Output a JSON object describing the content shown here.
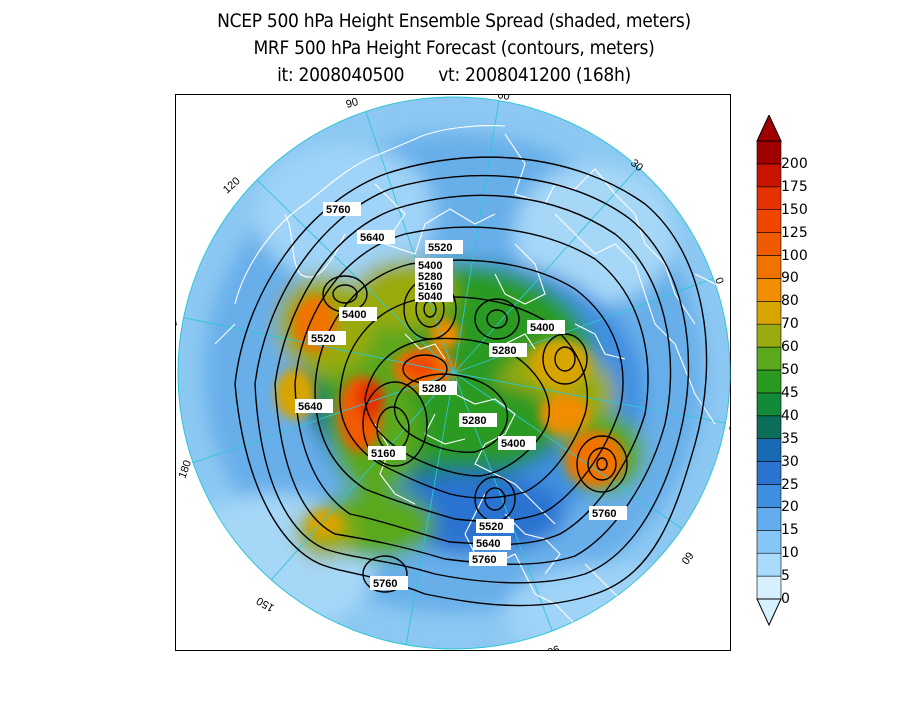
{
  "title": {
    "line1": "NCEP 500 hPa Height Ensemble Spread (shaded, meters)",
    "line2": "MRF 500 hPa Height Forecast (contours, meters)",
    "init_label": "it: 2008040500",
    "valid_label": "vt: 2008041200 (168h)"
  },
  "map": {
    "projection": "north polar stereographic",
    "longitude_labels": [
      "90",
      "60",
      "30",
      "0",
      "30",
      "60",
      "90",
      "120",
      "150",
      "180",
      "150",
      "120"
    ],
    "contour_labels": [
      "5760",
      "5640",
      "5520",
      "5400",
      "5280",
      "5160",
      "5040",
      "5400",
      "5520",
      "5400",
      "5280",
      "5640",
      "5280",
      "5160",
      "5280",
      "5400",
      "5520",
      "5640",
      "5760",
      "5760",
      "5760"
    ],
    "colors": {
      "land_outline": "#ffffff",
      "meridians": "#2ec7d3",
      "contours": "#000000"
    }
  },
  "colorbar": {
    "levels": [
      "0",
      "5",
      "10",
      "15",
      "20",
      "25",
      "30",
      "35",
      "40",
      "45",
      "50",
      "60",
      "70",
      "80",
      "90",
      "100",
      "125",
      "150",
      "175",
      "200"
    ],
    "colors": [
      "#d6f0ff",
      "#a9dcfc",
      "#86c6f6",
      "#64acee",
      "#3f8fe1",
      "#2a73d0",
      "#176bb5",
      "#0b6e5a",
      "#138a3a",
      "#2b9a22",
      "#5aa81c",
      "#9aaa10",
      "#d8a400",
      "#f08d00",
      "#f07300",
      "#f05a00",
      "#f04600",
      "#e63200",
      "#c81400",
      "#a00000"
    ]
  }
}
